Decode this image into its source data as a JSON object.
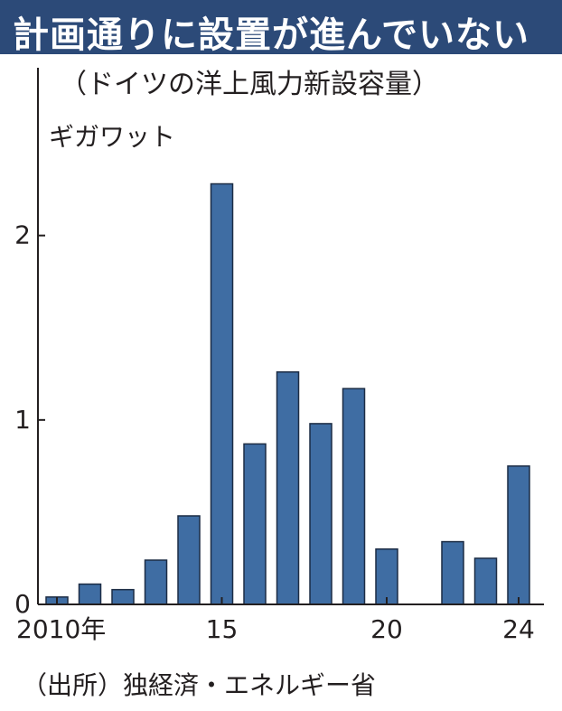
{
  "title": "計画通りに設置が進んでいない",
  "subtitle": "（ドイツの洋上風力新設容量）",
  "unit": "ギガワット",
  "source": "（出所）独経済・エネルギー省",
  "colors": {
    "title_bar": "#2c4a78",
    "bar_fill": "#3f6da3",
    "bar_stroke": "#1c2c44",
    "axis": "#231f20"
  },
  "chart_data": {
    "type": "bar",
    "categories": [
      2010,
      2011,
      2012,
      2013,
      2014,
      2015,
      2016,
      2017,
      2018,
      2019,
      2020,
      2021,
      2022,
      2023,
      2024
    ],
    "values": [
      0.04,
      0.11,
      0.08,
      0.24,
      0.48,
      2.28,
      0.87,
      1.26,
      0.98,
      1.17,
      0.3,
      0.0,
      0.34,
      0.25,
      0.75
    ],
    "ylim": [
      0,
      2.4
    ],
    "yticks": [
      {
        "value": 0,
        "label": "0"
      },
      {
        "value": 1,
        "label": "1"
      },
      {
        "value": 2,
        "label": "2"
      }
    ],
    "xticks": [
      {
        "index": 0,
        "label": "2010年"
      },
      {
        "index": 5,
        "label": "15"
      },
      {
        "index": 10,
        "label": "20"
      },
      {
        "index": 14,
        "label": "24"
      }
    ],
    "grid": false,
    "legend": false
  }
}
